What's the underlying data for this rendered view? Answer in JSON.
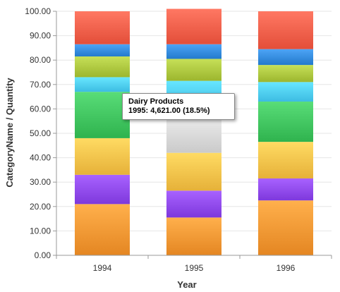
{
  "chart_data": {
    "type": "bar",
    "stacked": true,
    "percent_stacked": true,
    "xlabel": "Year",
    "ylabel": "CategoryName / Quantity",
    "ylim": [
      0,
      100
    ],
    "y_ticks": [
      "0.00",
      "10.00",
      "20.00",
      "30.00",
      "40.00",
      "50.00",
      "60.00",
      "70.00",
      "80.00",
      "90.00",
      "100.00"
    ],
    "categories": [
      "1994",
      "1995",
      "1996"
    ],
    "grid": true,
    "series": [
      {
        "color": "#f0922e",
        "values": [
          21,
          15.5,
          22.5
        ]
      },
      {
        "color": "#8a44e8",
        "values": [
          12,
          11,
          9
        ]
      },
      {
        "color": "#f2bd45",
        "values": [
          15,
          15.5,
          15
        ]
      },
      {
        "color": "#d6d6d6",
        "values": [
          0,
          18.5,
          0
        ]
      },
      {
        "color": "#3bbf5a",
        "values": [
          19,
          0,
          16.5
        ]
      },
      {
        "color": "#49c8ee",
        "values": [
          6,
          11,
          8
        ]
      },
      {
        "color": "#a8c23a",
        "values": [
          8.5,
          9,
          7
        ]
      },
      {
        "color": "#2f86d8",
        "values": [
          5,
          6,
          6.5
        ]
      },
      {
        "color": "#ef5a45",
        "values": [
          13.5,
          14.5,
          15.5
        ]
      }
    ],
    "tooltip": {
      "title": "Dairy Products",
      "text": "1995: 4,621.00 (18.5%)"
    }
  }
}
